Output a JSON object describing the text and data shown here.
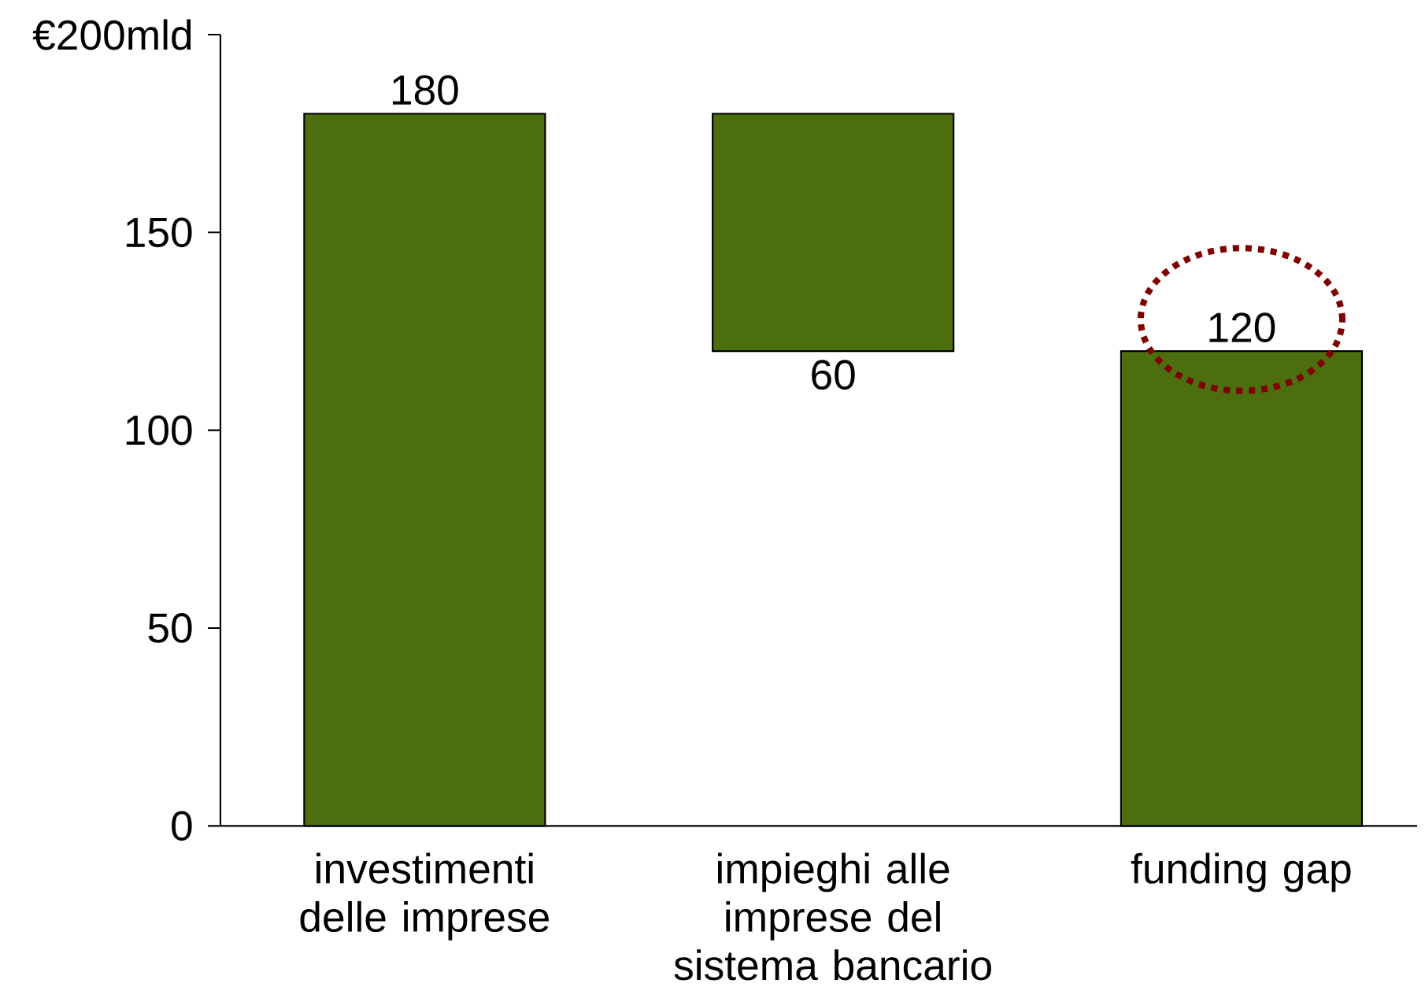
{
  "chart_data": {
    "type": "bar",
    "categories": [
      "investimenti delle imprese",
      "impieghi alle imprese del sistema bancario",
      "funding gap"
    ],
    "values": [
      180,
      60,
      120
    ],
    "base": [
      0,
      120,
      0
    ],
    "color": "#4d6e0f",
    "data_labels": true,
    "ylim": [
      0,
      200
    ],
    "yticks": [
      0,
      50,
      100,
      150,
      {
        "value": 200,
        "label": "€200mld"
      }
    ],
    "grid": false
  }
}
